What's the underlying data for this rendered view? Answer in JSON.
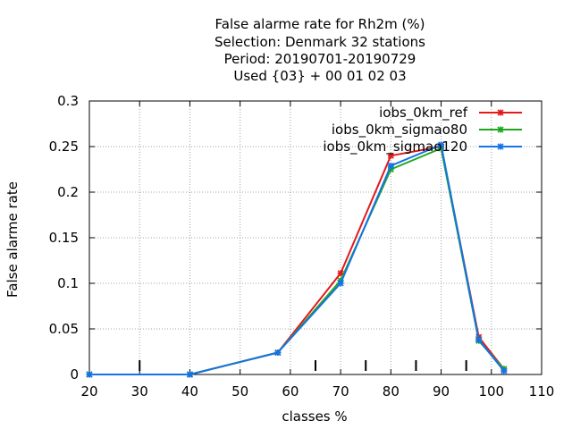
{
  "chart_data": {
    "type": "line",
    "title_lines": [
      "False alarme rate  for Rh2m (%)",
      "Selection: Denmark     32 stations",
      "Period: 20190701-20190729",
      "Used {03} + 00 01 02 03"
    ],
    "xlabel": "classes %",
    "ylabel": "False alarme rate",
    "xlim": [
      20,
      110
    ],
    "ylim": [
      0,
      0.3
    ],
    "xticks": [
      20,
      30,
      40,
      50,
      60,
      70,
      80,
      90,
      100,
      110
    ],
    "yticks": [
      0,
      0.05,
      0.1,
      0.15,
      0.2,
      0.25,
      0.3
    ],
    "ytick_labels": [
      "0",
      "0.05",
      "0.1",
      "0.15",
      "0.2",
      "0.25",
      "0.3"
    ],
    "grid": true,
    "legend_position": "top-right",
    "x": [
      20,
      40,
      57.5,
      70,
      80,
      90,
      97.5,
      102.5
    ],
    "series": [
      {
        "name": "iobs_0km_ref",
        "color": "#e31a1c",
        "values": [
          0,
          0,
          0.024,
          0.111,
          0.24,
          0.25,
          0.041,
          0.006
        ]
      },
      {
        "name": "iobs_0km_sigmao80",
        "color": "#1fa81f",
        "values": [
          0,
          0,
          0.024,
          0.103,
          0.225,
          0.248,
          0.037,
          0.006
        ]
      },
      {
        "name": "iobs_0km_sigmao120",
        "color": "#1473e6",
        "values": [
          0,
          0,
          0.024,
          0.1,
          0.229,
          0.252,
          0.038,
          0.004
        ]
      }
    ],
    "baseline_marks_x": [
      30,
      65,
      75,
      85,
      95
    ]
  }
}
